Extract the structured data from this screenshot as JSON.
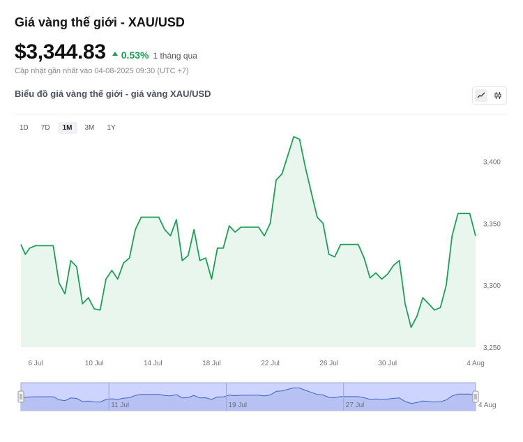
{
  "header": {
    "title": "Giá vàng thế giới - XAU/USD",
    "price": "$3,344.83",
    "change_pct": "0.53%",
    "change_period": "1 tháng qua",
    "updated": "Cập nhật gần nhất vào 04-08-2025 09:30 (UTC +7)"
  },
  "chart_section": {
    "heading": "Biểu đồ giá vàng thế giới - giá vàng XAU/USD",
    "range_tabs": [
      {
        "label": "1D",
        "active": false
      },
      {
        "label": "7D",
        "active": false
      },
      {
        "label": "1M",
        "active": true
      },
      {
        "label": "3M",
        "active": false
      },
      {
        "label": "1Y",
        "active": false
      }
    ],
    "view_toggle": [
      "line-chart-icon",
      "candlestick-icon"
    ]
  },
  "colors": {
    "line": "#1e9e55",
    "area": "#e8f6ee",
    "up": "#1e9e55",
    "navigator_bg": "#ccd4ff",
    "navigator_border": "#9aa4d9"
  },
  "chart_data": {
    "type": "area",
    "x": [
      0,
      0.3,
      0.6,
      1.0,
      1.4,
      1.8,
      2.2,
      2.6,
      3.0,
      3.4,
      3.8,
      4.2,
      4.6,
      5.0,
      5.4,
      5.8,
      6.2,
      6.6,
      7.0,
      7.4,
      7.8,
      8.2,
      8.6,
      9.0,
      9.4,
      9.8,
      10.2,
      10.6,
      11.0,
      11.4,
      11.8,
      12.2,
      12.6,
      13.0,
      13.4,
      13.8,
      14.2,
      14.6,
      15.0,
      15.4,
      15.8,
      16.2,
      16.6,
      17.0,
      17.4,
      17.8,
      18.2,
      18.6,
      19.0,
      19.4,
      19.8,
      20.2,
      20.6,
      21.0,
      21.4,
      21.8,
      22.2,
      22.6,
      23.0,
      23.4,
      23.8,
      24.2,
      24.6,
      25.0,
      25.4,
      25.8,
      26.2,
      26.6,
      27.0,
      27.4,
      27.8,
      28.2,
      28.6,
      29.0,
      29.4,
      29.8,
      30.2,
      30.6,
      31.0
    ],
    "x_tick_positions": [
      1,
      5,
      9,
      13,
      17,
      21,
      25,
      29,
      31
    ],
    "x_tick_labels": [
      "6 Jul",
      "10 Jul",
      "14 Jul",
      "18 Jul",
      "22 Jul",
      "26 Jul",
      "30 Jul",
      "",
      "4 Aug"
    ],
    "values": [
      3333,
      3325,
      3330,
      3332,
      3332,
      3332,
      3332,
      3302,
      3293,
      3320,
      3315,
      3285,
      3290,
      3281,
      3280,
      3305,
      3312,
      3305,
      3318,
      3322,
      3345,
      3355,
      3355,
      3355,
      3355,
      3345,
      3340,
      3353,
      3320,
      3324,
      3345,
      3320,
      3322,
      3305,
      3330,
      3330,
      3348,
      3343,
      3347,
      3347,
      3347,
      3347,
      3340,
      3350,
      3385,
      3390,
      3405,
      3420,
      3418,
      3395,
      3375,
      3355,
      3350,
      3325,
      3323,
      3333,
      3333,
      3333,
      3333,
      3322,
      3306,
      3310,
      3305,
      3309,
      3316,
      3320,
      3285,
      3266,
      3275,
      3290,
      3285,
      3280,
      3282,
      3300,
      3340,
      3358,
      3358,
      3358,
      3340
    ],
    "ylim": [
      3250,
      3415
    ],
    "y_ticks": [
      3250,
      3300,
      3350,
      3400
    ],
    "y_tick_labels": [
      "3,250",
      "3,300",
      "3,350",
      "3,400"
    ],
    "grid": false,
    "navigator": {
      "labels": [
        "11 Jul",
        "19 Jul",
        "27 Jul",
        "4 Aug"
      ],
      "label_positions": [
        6,
        14,
        22,
        31
      ]
    }
  }
}
